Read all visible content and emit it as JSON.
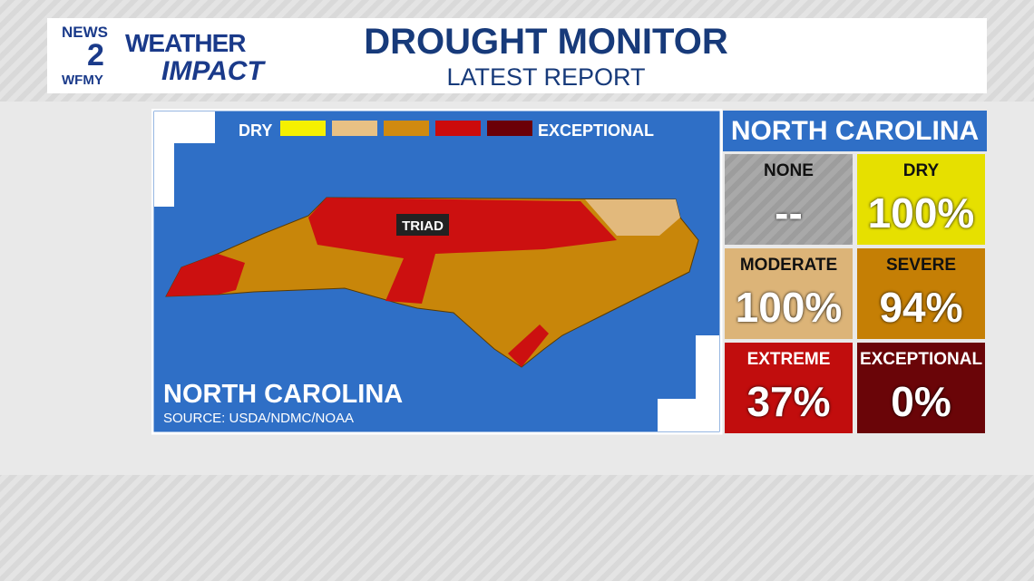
{
  "logo": {
    "news": "NEWS",
    "channel": "2",
    "station": "WFMY",
    "brand_top": "WEATHER",
    "brand_bottom": "IMPACT"
  },
  "header": {
    "title": "DROUGHT MONITOR",
    "subtitle": "LATEST REPORT"
  },
  "map": {
    "legend_low": "DRY",
    "legend_high": "EXCEPTIONAL",
    "region_label": "TRIAD",
    "state_label": "NORTH CAROLINA",
    "source": "SOURCE: USDA/NDMC/NOAA"
  },
  "panel": {
    "title": "NORTH CAROLINA",
    "cells": [
      {
        "label": "NONE",
        "value": "--"
      },
      {
        "label": "DRY",
        "value": "100%"
      },
      {
        "label": "MODERATE",
        "value": "100%"
      },
      {
        "label": "SEVERE",
        "value": "94%"
      },
      {
        "label": "EXTREME",
        "value": "37%"
      },
      {
        "label": "EXCEPTIONAL",
        "value": "0%"
      }
    ]
  }
}
